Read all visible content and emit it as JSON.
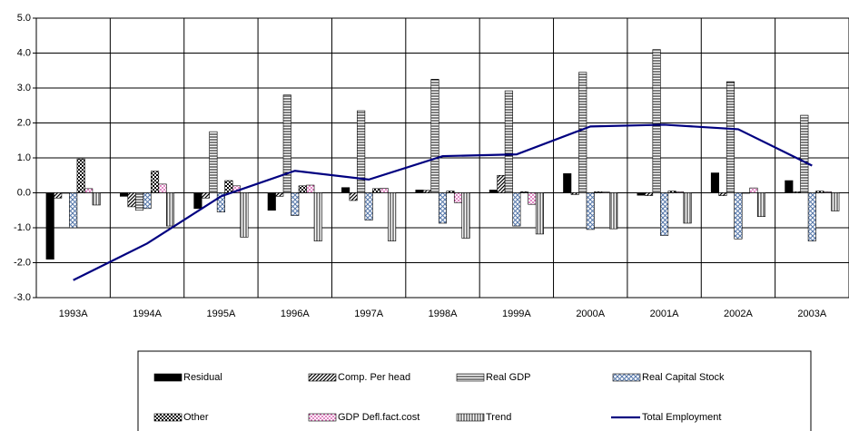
{
  "chart_data": {
    "type": "bar",
    "categories": [
      "1993A",
      "1994A",
      "1995A",
      "1996A",
      "1997A",
      "1998A",
      "1999A",
      "2000A",
      "2001A",
      "2002A",
      "2003A"
    ],
    "ylim": [
      -3,
      5
    ],
    "yticks": [
      {
        "value": -3,
        "label": "-3.0"
      },
      {
        "value": -2,
        "label": "-2.0"
      },
      {
        "value": -1,
        "label": "-1.0"
      },
      {
        "value": 0,
        "label": "0.0"
      },
      {
        "value": 1,
        "label": "1.0"
      },
      {
        "value": 2,
        "label": "2.0"
      },
      {
        "value": 3,
        "label": "3.0"
      },
      {
        "value": 4,
        "label": "4.0"
      },
      {
        "value": 5,
        "label": "5.0"
      }
    ],
    "grid": true,
    "series": [
      {
        "name": "Residual",
        "color": "#000000",
        "pattern": "solid",
        "values": [
          -1.9,
          -0.1,
          -0.45,
          -0.5,
          0.15,
          0.08,
          0.08,
          0.55,
          -0.07,
          0.57,
          0.35
        ]
      },
      {
        "name": "Comp. Per head",
        "color": "#000000",
        "pattern": "diagonal",
        "values": [
          -0.15,
          -0.4,
          -0.15,
          -0.1,
          -0.22,
          0.07,
          0.5,
          -0.05,
          -0.08,
          -0.08,
          0.03
        ]
      },
      {
        "name": "Real GDP",
        "color": "#000000",
        "pattern": "horizontal",
        "values": [
          0.0,
          -0.5,
          1.75,
          2.8,
          2.35,
          3.25,
          2.92,
          3.45,
          4.1,
          3.18,
          2.22
        ]
      },
      {
        "name": "Real Capital Stock",
        "color": "#5577aa",
        "pattern": "crosshatch",
        "values": [
          -1.0,
          -0.45,
          -0.55,
          -0.65,
          -0.78,
          -0.87,
          -0.95,
          -1.05,
          -1.22,
          -1.32,
          -1.38
        ]
      },
      {
        "name": "Other",
        "color": "#000000",
        "pattern": "checker",
        "values": [
          0.97,
          0.62,
          0.35,
          0.2,
          0.12,
          0.05,
          0.03,
          0.03,
          0.05,
          0.0,
          0.05
        ]
      },
      {
        "name": "GDP Defl.fact.cost",
        "color": "#cc3399",
        "pattern": "dots",
        "values": [
          0.12,
          0.25,
          0.2,
          0.22,
          0.13,
          -0.28,
          -0.33,
          0.02,
          0.03,
          0.14,
          0.03
        ]
      },
      {
        "name": "Trend",
        "color": "#555555",
        "pattern": "vertical",
        "values": [
          -0.35,
          -0.95,
          -1.27,
          -1.38,
          -1.38,
          -1.3,
          -1.18,
          -1.03,
          -0.87,
          -0.68,
          -0.52
        ]
      },
      {
        "name": "Total Employment",
        "color": "#000080",
        "pattern": "line",
        "values": [
          -2.5,
          -1.45,
          -0.1,
          0.63,
          0.38,
          1.05,
          1.1,
          1.9,
          1.95,
          1.82,
          0.78
        ]
      }
    ]
  }
}
